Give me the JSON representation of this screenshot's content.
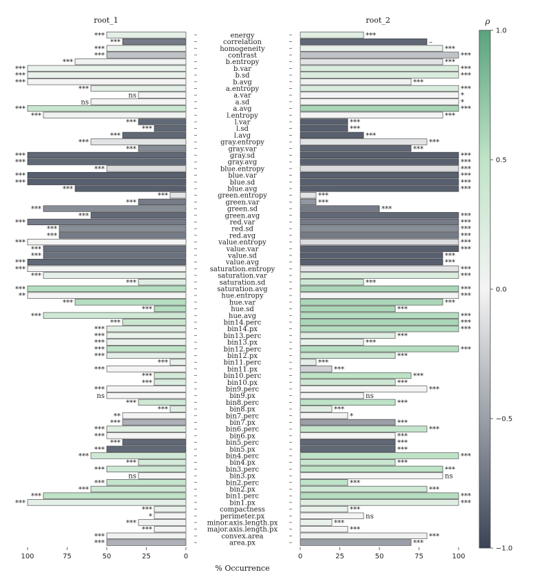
{
  "chart_data": {
    "type": "bar",
    "panels": [
      {
        "name": "root_1",
        "xlim": [
          100,
          0
        ],
        "ticks": [
          "100",
          "75",
          "50",
          "25",
          "0"
        ]
      },
      {
        "name": "root_2",
        "xlim": [
          0,
          100
        ],
        "ticks": [
          "0",
          "25",
          "50",
          "75",
          "100"
        ]
      }
    ],
    "xlabel": "% Occurrence",
    "colorbar": {
      "label": "ρ",
      "range": [
        -1.0,
        1.0
      ],
      "ticks": [
        "1.0",
        "0.5",
        "0.0",
        "−0.5",
        "−1.0"
      ],
      "colors": {
        "low": "#3b4456",
        "mid": "#f4f4f4",
        "high": "#5aa37e"
      }
    },
    "features": [
      {
        "name": "energy",
        "r1": {
          "v": 50,
          "rho": 0.15,
          "sig": "***"
        },
        "r2": {
          "v": 40,
          "rho": 0.2,
          "sig": "***"
        }
      },
      {
        "name": "correlation",
        "r1": {
          "v": 40,
          "rho": -0.7,
          "sig": "***"
        },
        "r2": {
          "v": 80,
          "rho": -0.8,
          "sig": "–"
        }
      },
      {
        "name": "homogeneity",
        "r1": {
          "v": 50,
          "rho": 0.1,
          "sig": "***"
        },
        "r2": {
          "v": 90,
          "rho": 0.1,
          "sig": "***"
        }
      },
      {
        "name": "contrast",
        "r1": {
          "v": 50,
          "rho": -0.3,
          "sig": "***"
        },
        "r2": {
          "v": 100,
          "rho": -0.3,
          "sig": "***"
        }
      },
      {
        "name": "b.entropy",
        "r1": {
          "v": 70,
          "rho": 0.05,
          "sig": "***"
        },
        "r2": {
          "v": 90,
          "rho": -0.1,
          "sig": "***"
        }
      },
      {
        "name": "b.var",
        "r1": {
          "v": 100,
          "rho": 0.1,
          "sig": "***"
        },
        "r2": {
          "v": 100,
          "rho": 0.25,
          "sig": "***"
        }
      },
      {
        "name": "b.sd",
        "r1": {
          "v": 100,
          "rho": 0.1,
          "sig": "***"
        },
        "r2": {
          "v": 100,
          "rho": 0.25,
          "sig": "***"
        }
      },
      {
        "name": "b.avg",
        "r1": {
          "v": 100,
          "rho": 0.0,
          "sig": "***"
        },
        "r2": {
          "v": 70,
          "rho": 0.05,
          "sig": "***"
        }
      },
      {
        "name": "a.entropy",
        "r1": {
          "v": 60,
          "rho": 0.15,
          "sig": "***"
        },
        "r2": {
          "v": 100,
          "rho": 0.25,
          "sig": "***"
        }
      },
      {
        "name": "a.var",
        "r1": {
          "v": 30,
          "rho": 0.0,
          "sig": "ns"
        },
        "r2": {
          "v": 100,
          "rho": 0.0,
          "sig": "*"
        }
      },
      {
        "name": "a.sd",
        "r1": {
          "v": 60,
          "rho": 0.0,
          "sig": "ns"
        },
        "r2": {
          "v": 100,
          "rho": 0.0,
          "sig": "*"
        }
      },
      {
        "name": "a.avg",
        "r1": {
          "v": 100,
          "rho": 0.4,
          "sig": "***"
        },
        "r2": {
          "v": 100,
          "rho": 0.6,
          "sig": "***"
        }
      },
      {
        "name": "l.entropy",
        "r1": {
          "v": 90,
          "rho": 0.05,
          "sig": "***"
        },
        "r2": {
          "v": 90,
          "rho": 0.0,
          "sig": "***"
        }
      },
      {
        "name": "l.var",
        "r1": {
          "v": 30,
          "rho": -0.8,
          "sig": "***"
        },
        "r2": {
          "v": 30,
          "rho": -0.85,
          "sig": "***"
        }
      },
      {
        "name": "l.sd",
        "r1": {
          "v": 20,
          "rho": -0.8,
          "sig": "***"
        },
        "r2": {
          "v": 30,
          "rho": -0.85,
          "sig": "***"
        }
      },
      {
        "name": "l.avg",
        "r1": {
          "v": 40,
          "rho": -0.8,
          "sig": "***"
        },
        "r2": {
          "v": 40,
          "rho": -0.85,
          "sig": "***"
        }
      },
      {
        "name": "gray.entropy",
        "r1": {
          "v": 60,
          "rho": -0.1,
          "sig": "***"
        },
        "r2": {
          "v": 80,
          "rho": -0.1,
          "sig": "***"
        }
      },
      {
        "name": "gray.var",
        "r1": {
          "v": 30,
          "rho": -0.6,
          "sig": "***"
        },
        "r2": {
          "v": 70,
          "rho": -0.8,
          "sig": "***"
        }
      },
      {
        "name": "gray.sd",
        "r1": {
          "v": 100,
          "rho": -0.8,
          "sig": "***"
        },
        "r2": {
          "v": 100,
          "rho": -0.85,
          "sig": "***"
        }
      },
      {
        "name": "gray.avg",
        "r1": {
          "v": 100,
          "rho": -0.8,
          "sig": "***"
        },
        "r2": {
          "v": 100,
          "rho": -0.85,
          "sig": "***"
        }
      },
      {
        "name": "blue.entropy",
        "r1": {
          "v": 50,
          "rho": -0.15,
          "sig": "***"
        },
        "r2": {
          "v": 100,
          "rho": -0.15,
          "sig": "***"
        }
      },
      {
        "name": "blue.var",
        "r1": {
          "v": 100,
          "rho": -0.85,
          "sig": "***"
        },
        "r2": {
          "v": 100,
          "rho": -0.85,
          "sig": "***"
        }
      },
      {
        "name": "blue.sd",
        "r1": {
          "v": 100,
          "rho": -0.85,
          "sig": "***"
        },
        "r2": {
          "v": 100,
          "rho": -0.85,
          "sig": "***"
        }
      },
      {
        "name": "blue.avg",
        "r1": {
          "v": 70,
          "rho": -0.85,
          "sig": "***"
        },
        "r2": {
          "v": 100,
          "rho": -0.85,
          "sig": "***"
        }
      },
      {
        "name": "green.entropy",
        "r1": {
          "v": 10,
          "rho": -0.1,
          "sig": "***"
        },
        "r2": {
          "v": 10,
          "rho": -0.1,
          "sig": "***"
        }
      },
      {
        "name": "green.var",
        "r1": {
          "v": 30,
          "rho": -0.7,
          "sig": "***"
        },
        "r2": {
          "v": 10,
          "rho": -0.55,
          "sig": "***"
        }
      },
      {
        "name": "green.sd",
        "r1": {
          "v": 90,
          "rho": -0.6,
          "sig": "***"
        },
        "r2": {
          "v": 50,
          "rho": -0.7,
          "sig": "***"
        }
      },
      {
        "name": "green.avg",
        "r1": {
          "v": 60,
          "rho": -0.8,
          "sig": "***"
        },
        "r2": {
          "v": 100,
          "rho": -0.8,
          "sig": "***"
        }
      },
      {
        "name": "red.var",
        "r1": {
          "v": 100,
          "rho": -0.7,
          "sig": "***"
        },
        "r2": {
          "v": 100,
          "rho": -0.7,
          "sig": "***"
        }
      },
      {
        "name": "red.sd",
        "r1": {
          "v": 80,
          "rho": -0.6,
          "sig": "***"
        },
        "r2": {
          "v": 100,
          "rho": -0.6,
          "sig": "***"
        }
      },
      {
        "name": "red.avg",
        "r1": {
          "v": 80,
          "rho": -0.7,
          "sig": "***"
        },
        "r2": {
          "v": 100,
          "rho": -0.7,
          "sig": "***"
        }
      },
      {
        "name": "value.entropy",
        "r1": {
          "v": 100,
          "rho": 0.0,
          "sig": "***"
        },
        "r2": {
          "v": 100,
          "rho": -0.15,
          "sig": "***"
        }
      },
      {
        "name": "value.var",
        "r1": {
          "v": 90,
          "rho": -0.75,
          "sig": "***"
        },
        "r2": {
          "v": 100,
          "rho": -0.85,
          "sig": "***"
        }
      },
      {
        "name": "value.sd",
        "r1": {
          "v": 90,
          "rho": -0.75,
          "sig": "***"
        },
        "r2": {
          "v": 90,
          "rho": -0.85,
          "sig": "***"
        }
      },
      {
        "name": "value.avg",
        "r1": {
          "v": 100,
          "rho": -0.8,
          "sig": "***"
        },
        "r2": {
          "v": 90,
          "rho": -0.85,
          "sig": "***"
        }
      },
      {
        "name": "saturation.entropy",
        "r1": {
          "v": 100,
          "rho": 0.0,
          "sig": "***"
        },
        "r2": {
          "v": 100,
          "rho": -0.1,
          "sig": "***"
        }
      },
      {
        "name": "saturation.var",
        "r1": {
          "v": 90,
          "rho": 0.15,
          "sig": "***"
        },
        "r2": {
          "v": 100,
          "rho": 0.25,
          "sig": "***"
        }
      },
      {
        "name": "saturation.sd",
        "r1": {
          "v": 30,
          "rho": 0.2,
          "sig": "***"
        },
        "r2": {
          "v": 40,
          "rho": 0.35,
          "sig": "***"
        }
      },
      {
        "name": "saturation.avg",
        "r1": {
          "v": 100,
          "rho": 0.55,
          "sig": "***"
        },
        "r2": {
          "v": 100,
          "rho": 0.6,
          "sig": "***"
        }
      },
      {
        "name": "hue.entropy",
        "r1": {
          "v": 100,
          "rho": 0.0,
          "sig": "**"
        },
        "r2": {
          "v": 100,
          "rho": 0.0,
          "sig": "***"
        }
      },
      {
        "name": "hue.var",
        "r1": {
          "v": 70,
          "rho": 0.55,
          "sig": "***"
        },
        "r2": {
          "v": 90,
          "rho": 0.6,
          "sig": "***"
        }
      },
      {
        "name": "hue.sd",
        "r1": {
          "v": 20,
          "rho": 0.55,
          "sig": "***"
        },
        "r2": {
          "v": 60,
          "rho": 0.6,
          "sig": "***"
        }
      },
      {
        "name": "hue.avg",
        "r1": {
          "v": 90,
          "rho": 0.35,
          "sig": "***"
        },
        "r2": {
          "v": 100,
          "rho": 0.55,
          "sig": "***"
        }
      },
      {
        "name": "bin14.perc",
        "r1": {
          "v": 40,
          "rho": 0.4,
          "sig": "***"
        },
        "r2": {
          "v": 100,
          "rho": 0.6,
          "sig": "***"
        }
      },
      {
        "name": "bin14.px",
        "r1": {
          "v": 50,
          "rho": 0.2,
          "sig": "***"
        },
        "r2": {
          "v": 100,
          "rho": 0.55,
          "sig": "***"
        }
      },
      {
        "name": "bin13.perc",
        "r1": {
          "v": 50,
          "rho": 0.1,
          "sig": "***"
        },
        "r2": {
          "v": 60,
          "rho": 0.2,
          "sig": "***"
        }
      },
      {
        "name": "bin13.px",
        "r1": {
          "v": 50,
          "rho": 0.1,
          "sig": "***"
        },
        "r2": {
          "v": 40,
          "rho": 0.1,
          "sig": "***"
        }
      },
      {
        "name": "bin12.perc",
        "r1": {
          "v": 50,
          "rho": 0.5,
          "sig": "***"
        },
        "r2": {
          "v": 100,
          "rho": 0.55,
          "sig": "***"
        }
      },
      {
        "name": "bin12.px",
        "r1": {
          "v": 50,
          "rho": 0.15,
          "sig": "***"
        },
        "r2": {
          "v": 60,
          "rho": 0.35,
          "sig": "***"
        }
      },
      {
        "name": "bin11.perc",
        "r1": {
          "v": 10,
          "rho": 0.1,
          "sig": "***"
        },
        "r2": {
          "v": 10,
          "rho": 0.15,
          "sig": "***"
        }
      },
      {
        "name": "bin11.px",
        "r1": {
          "v": 50,
          "rho": 0.0,
          "sig": "***"
        },
        "r2": {
          "v": 20,
          "rho": -0.2,
          "sig": "***"
        }
      },
      {
        "name": "bin10.perc",
        "r1": {
          "v": 20,
          "rho": 0.3,
          "sig": "***"
        },
        "r2": {
          "v": 70,
          "rho": 0.5,
          "sig": "***"
        }
      },
      {
        "name": "bin10.px",
        "r1": {
          "v": 20,
          "rho": 0.25,
          "sig": "***"
        },
        "r2": {
          "v": 60,
          "rho": 0.35,
          "sig": "***"
        }
      },
      {
        "name": "bin9.perc",
        "r1": {
          "v": 50,
          "rho": 0.0,
          "sig": "***"
        },
        "r2": {
          "v": 80,
          "rho": 0.0,
          "sig": "***"
        }
      },
      {
        "name": "bin9.px",
        "r1": {
          "v": 50,
          "rho": 0.0,
          "sig": "ns"
        },
        "r2": {
          "v": 40,
          "rho": 0.0,
          "sig": "ns"
        }
      },
      {
        "name": "bin8.perc",
        "r1": {
          "v": 30,
          "rho": 0.35,
          "sig": "***"
        },
        "r2": {
          "v": 60,
          "rho": 0.5,
          "sig": "***"
        }
      },
      {
        "name": "bin8.px",
        "r1": {
          "v": 10,
          "rho": 0.2,
          "sig": "***"
        },
        "r2": {
          "v": 20,
          "rho": 0.2,
          "sig": "***"
        }
      },
      {
        "name": "bin7.perc",
        "r1": {
          "v": 40,
          "rho": 0.0,
          "sig": "**"
        },
        "r2": {
          "v": 30,
          "rho": 0.0,
          "sig": "*"
        }
      },
      {
        "name": "bin7.px",
        "r1": {
          "v": 40,
          "rho": -0.4,
          "sig": "***"
        },
        "r2": {
          "v": 60,
          "rho": -0.5,
          "sig": "***"
        }
      },
      {
        "name": "bin6.perc",
        "r1": {
          "v": 50,
          "rho": 0.2,
          "sig": "***"
        },
        "r2": {
          "v": 80,
          "rho": 0.45,
          "sig": "***"
        }
      },
      {
        "name": "bin6.px",
        "r1": {
          "v": 50,
          "rho": 0.0,
          "sig": "***"
        },
        "r2": {
          "v": 60,
          "rho": 0.0,
          "sig": "***"
        }
      },
      {
        "name": "bin5.perc",
        "r1": {
          "v": 40,
          "rho": -0.8,
          "sig": "***"
        },
        "r2": {
          "v": 60,
          "rho": -0.8,
          "sig": "***"
        }
      },
      {
        "name": "bin5.px",
        "r1": {
          "v": 50,
          "rho": -0.8,
          "sig": "***"
        },
        "r2": {
          "v": 60,
          "rho": -0.8,
          "sig": "***"
        }
      },
      {
        "name": "bin4.perc",
        "r1": {
          "v": 60,
          "rho": 0.35,
          "sig": "***"
        },
        "r2": {
          "v": 100,
          "rho": 0.5,
          "sig": "***"
        }
      },
      {
        "name": "bin4.px",
        "r1": {
          "v": 30,
          "rho": 0.3,
          "sig": "***"
        },
        "r2": {
          "v": 60,
          "rho": 0.4,
          "sig": "***"
        }
      },
      {
        "name": "bin3.perc",
        "r1": {
          "v": 50,
          "rho": 0.35,
          "sig": "***"
        },
        "r2": {
          "v": 90,
          "rho": 0.5,
          "sig": "***"
        }
      },
      {
        "name": "bin3.px",
        "r1": {
          "v": 30,
          "rho": 0.0,
          "sig": "ns"
        },
        "r2": {
          "v": 90,
          "rho": 0.0,
          "sig": "ns"
        }
      },
      {
        "name": "bin2.perc",
        "r1": {
          "v": 50,
          "rho": 0.45,
          "sig": "***"
        },
        "r2": {
          "v": 30,
          "rho": 0.5,
          "sig": "***"
        }
      },
      {
        "name": "bin2.px",
        "r1": {
          "v": 60,
          "rho": 0.35,
          "sig": "***"
        },
        "r2": {
          "v": 80,
          "rho": 0.35,
          "sig": "***"
        }
      },
      {
        "name": "bin1.perc",
        "r1": {
          "v": 90,
          "rho": 0.5,
          "sig": "***"
        },
        "r2": {
          "v": 100,
          "rho": 0.55,
          "sig": "***"
        }
      },
      {
        "name": "bin1.px",
        "r1": {
          "v": 100,
          "rho": 0.15,
          "sig": "***"
        },
        "r2": {
          "v": 100,
          "rho": 0.2,
          "sig": "***"
        }
      },
      {
        "name": "compactness",
        "r1": {
          "v": 20,
          "rho": 0.1,
          "sig": "***"
        },
        "r2": {
          "v": 30,
          "rho": 0.1,
          "sig": "***"
        }
      },
      {
        "name": "perimeter.px",
        "r1": {
          "v": 20,
          "rho": 0.0,
          "sig": "*"
        },
        "r2": {
          "v": 40,
          "rho": 0.0,
          "sig": "ns"
        }
      },
      {
        "name": "minor.axis.length.px",
        "r1": {
          "v": 30,
          "rho": 0.05,
          "sig": "***"
        },
        "r2": {
          "v": 20,
          "rho": 0.1,
          "sig": "***"
        }
      },
      {
        "name": "major.axis.length.px",
        "r1": {
          "v": 20,
          "rho": 0.0,
          "sig": "***"
        },
        "r2": {
          "v": 30,
          "rho": 0.0,
          "sig": "***"
        }
      },
      {
        "name": "convex.area",
        "r1": {
          "v": 50,
          "rho": 0.05,
          "sig": "***"
        },
        "r2": {
          "v": 80,
          "rho": 0.05,
          "sig": "***"
        }
      },
      {
        "name": "area.px",
        "r1": {
          "v": 50,
          "rho": -0.4,
          "sig": "***"
        },
        "r2": {
          "v": 70,
          "rho": -0.5,
          "sig": "***"
        }
      }
    ]
  }
}
